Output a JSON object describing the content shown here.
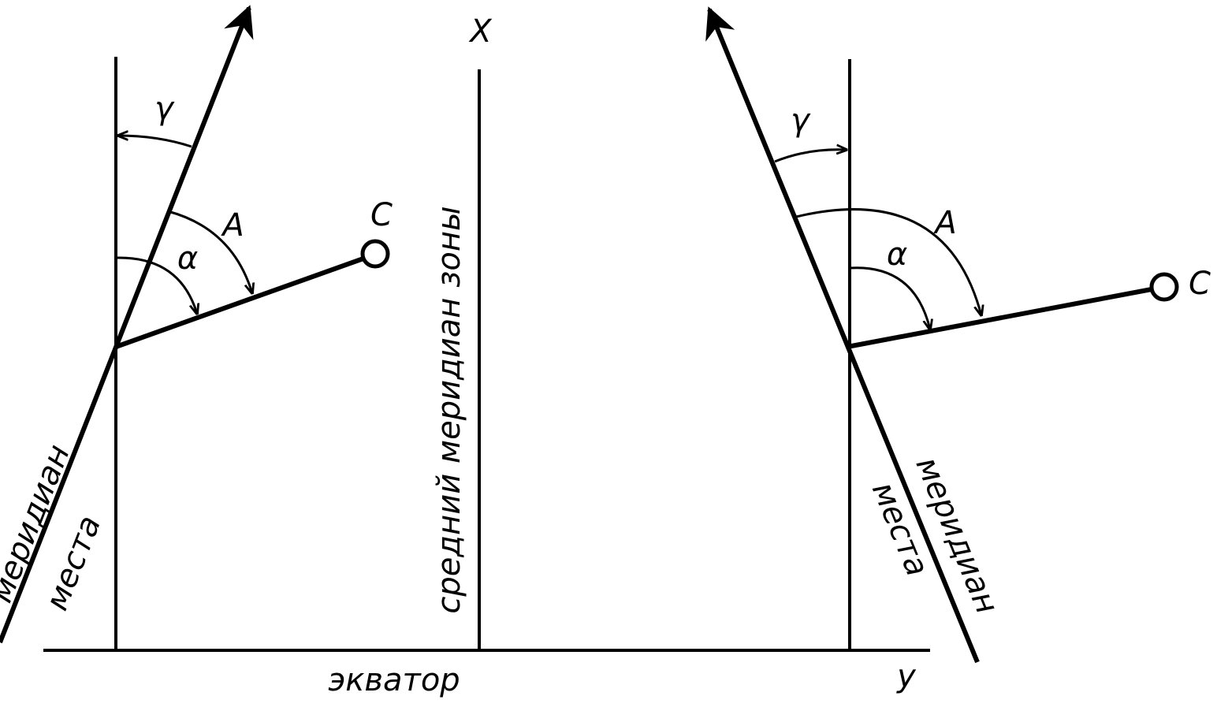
{
  "axes": {
    "x_label": "X",
    "y_label": "у",
    "equator": "экватор",
    "central_meridian": "средний меридиан зоны"
  },
  "left": {
    "meridian": [
      "меридиан",
      "места"
    ],
    "point": "C",
    "angles": {
      "gamma": "γ",
      "azimuth": "A",
      "alpha": "α"
    }
  },
  "right": {
    "meridian": [
      "меридиан",
      "места"
    ],
    "point": "C",
    "angles": {
      "gamma": "γ",
      "azimuth": "A",
      "alpha": "α"
    }
  }
}
